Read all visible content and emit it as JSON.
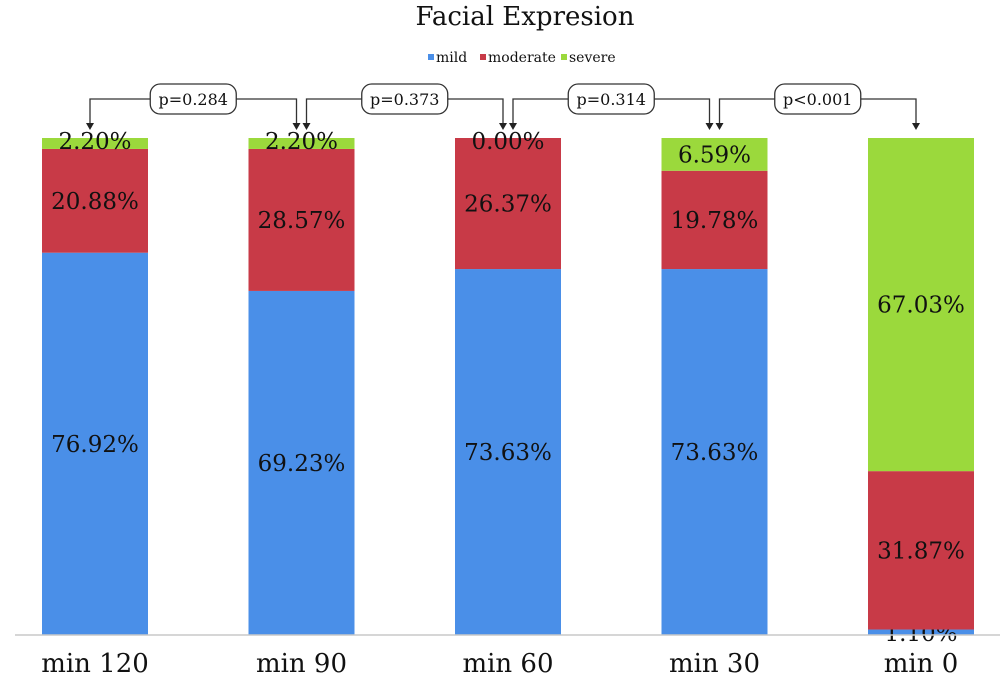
{
  "chart_data": {
    "type": "bar",
    "stacked": true,
    "title": "Facial Expresion",
    "xlabel": "",
    "ylabel": "",
    "ylim": [
      0,
      100
    ],
    "categories": [
      "min 120",
      "min 90",
      "min 60",
      "min 30",
      "min 0"
    ],
    "series": [
      {
        "name": "mild",
        "color": "#4a8fe8",
        "values": [
          76.92,
          69.23,
          73.63,
          73.63,
          1.1
        ],
        "labels": [
          "76.92%",
          "69.23%",
          "73.63%",
          "73.63%",
          "1.10%"
        ]
      },
      {
        "name": "moderate",
        "color": "#c83a47",
        "values": [
          20.88,
          28.57,
          26.37,
          19.78,
          31.87
        ],
        "labels": [
          "20.88%",
          "28.57%",
          "26.37%",
          "19.78%",
          "31.87%"
        ]
      },
      {
        "name": "severe",
        "color": "#9bd93c",
        "values": [
          2.2,
          2.2,
          0.0,
          6.59,
          67.03
        ],
        "labels": [
          "2.20%",
          "2.20%",
          "0.00%",
          "6.59%",
          "67.03%"
        ]
      }
    ],
    "legend": "top-center",
    "grid": false,
    "annotations": [
      {
        "text": "p=0.284",
        "from": "min 120",
        "to": "min 90"
      },
      {
        "text": "p=0.373",
        "from": "min 90",
        "to": "min 60"
      },
      {
        "text": "p=0.314",
        "from": "min 60",
        "to": "min 30"
      },
      {
        "text": "p<0.001",
        "from": "min 30",
        "to": "min 0"
      }
    ]
  }
}
